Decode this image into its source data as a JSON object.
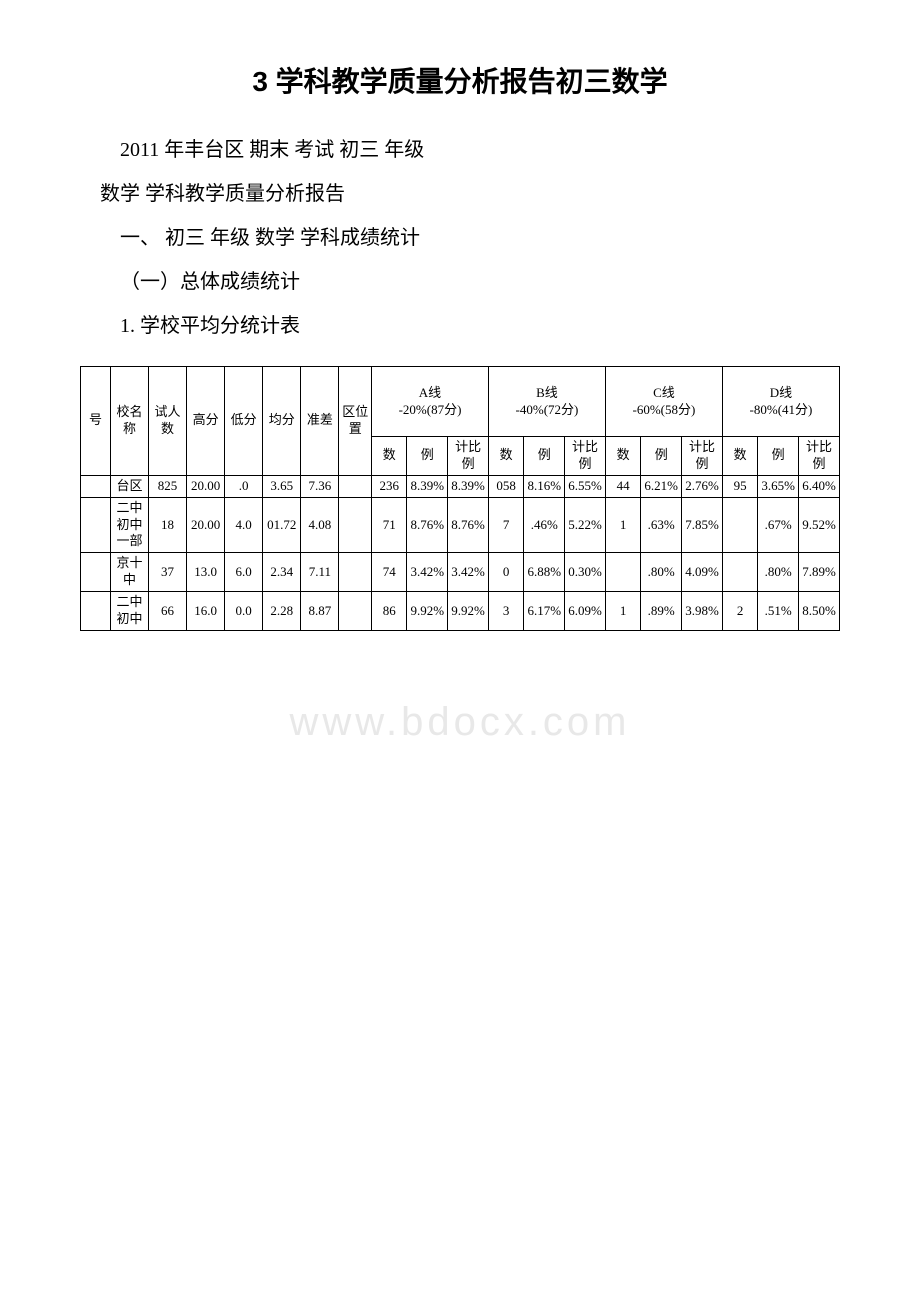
{
  "document": {
    "title": "3 学科教学质量分析报告初三数学",
    "line1": "2011 年丰台区 期末 考试 初三 年级",
    "line2": " 数学 学科教学质量分析报告",
    "line3": "一、 初三 年级  数学 学科成绩统计",
    "line4": "（一）总体成绩统计",
    "line5": "1. 学校平均分统计表"
  },
  "watermark": "www.bdocx.com",
  "table": {
    "headers": {
      "col_num": "号",
      "col_name": "校名称",
      "col_count": "试人数",
      "col_high": "高分",
      "col_low": "低分",
      "col_avg": "均分",
      "col_std": "准差",
      "col_rank": "区位置",
      "line_a": "A线",
      "line_a_sub": "-20%(87分)",
      "line_b": "B线",
      "line_b_sub": "-40%(72分)",
      "line_c": "C线",
      "line_c_sub": "-60%(58分)",
      "line_d": "D线",
      "line_d_sub": "-80%(41分)",
      "sub_count": "数",
      "sub_ratio": "例",
      "sub_cum": "计比例"
    },
    "rows": [
      {
        "num": "",
        "name": "台区",
        "count": "825",
        "high": "20.00",
        "low": ".0",
        "avg": "3.65",
        "std": "7.36",
        "rank": "",
        "a_n": "236",
        "a_p": "8.39%",
        "a_cp": "8.39%",
        "b_n": "058",
        "b_p": "8.16%",
        "b_cp": "6.55%",
        "c_n": "44",
        "c_p": "6.21%",
        "c_cp": "2.76%",
        "d_n": "95",
        "d_p": "3.65%",
        "d_cp": "6.40%"
      },
      {
        "num": "",
        "name": "二中初中一部",
        "count": "18",
        "high": "20.00",
        "low": "4.0",
        "avg": "01.72",
        "std": "4.08",
        "rank": "",
        "a_n": "71",
        "a_p": "8.76%",
        "a_cp": "8.76%",
        "b_n": "7",
        "b_p": ".46%",
        "b_cp": "5.22%",
        "c_n": "1",
        "c_p": ".63%",
        "c_cp": "7.85%",
        "d_n": "",
        "d_p": ".67%",
        "d_cp": "9.52%"
      },
      {
        "num": "",
        "name": "京十中",
        "count": "37",
        "high": "13.0",
        "low": "6.0",
        "avg": "2.34",
        "std": "7.11",
        "rank": "",
        "a_n": "74",
        "a_p": "3.42%",
        "a_cp": "3.42%",
        "b_n": "0",
        "b_p": "6.88%",
        "b_cp": "0.30%",
        "c_n": "",
        "c_p": ".80%",
        "c_cp": "4.09%",
        "d_n": "",
        "d_p": ".80%",
        "d_cp": "7.89%"
      },
      {
        "num": "",
        "name": "二中初中",
        "count": "66",
        "high": "16.0",
        "low": "0.0",
        "avg": "2.28",
        "std": "8.87",
        "rank": "",
        "a_n": "86",
        "a_p": "9.92%",
        "a_cp": "9.92%",
        "b_n": "3",
        "b_p": "6.17%",
        "b_cp": "6.09%",
        "c_n": "1",
        "c_p": ".89%",
        "c_cp": "3.98%",
        "d_n": "2",
        "d_p": ".51%",
        "d_cp": "8.50%"
      }
    ]
  },
  "style": {
    "background_color": "#ffffff",
    "text_color": "#000000",
    "border_color": "#000000",
    "watermark_color": "#e8e8e8",
    "title_fontsize": 28,
    "body_fontsize": 20,
    "table_fontsize": 13
  }
}
